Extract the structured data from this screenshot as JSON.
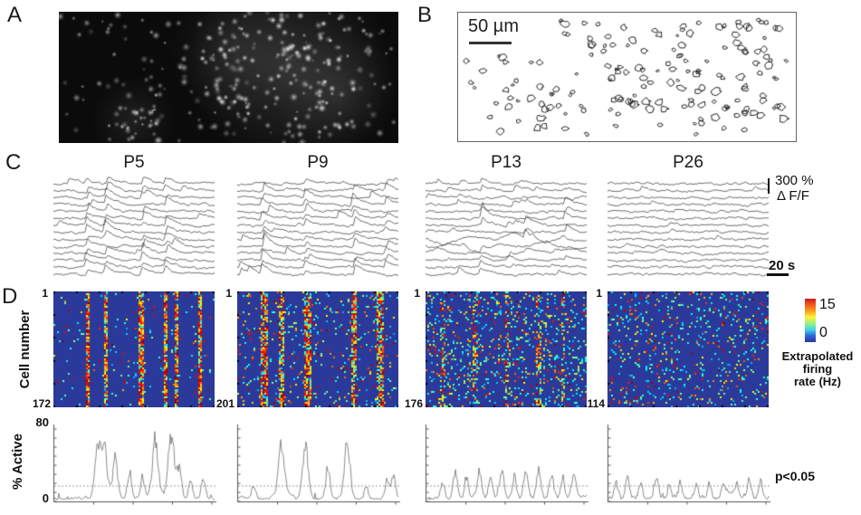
{
  "panels": {
    "A": {
      "label": "A"
    },
    "B": {
      "label": "B",
      "scale_bar_text": "50 µm"
    },
    "C": {
      "label": "C",
      "amp_scale": "300 %",
      "amp_unit": "Δ F/F",
      "time_scale": "20 s"
    },
    "D": {
      "label": "D",
      "y_label": "Cell number"
    }
  },
  "ages": [
    "P5",
    "P9",
    "P13",
    "P26"
  ],
  "traces": [
    {
      "age": "P5",
      "rows": 14,
      "sync": [
        0.21,
        0.33,
        0.56,
        0.7
      ],
      "sync_prob": 0.92,
      "extra": 0.6,
      "amp": 8,
      "wild_rows": []
    },
    {
      "age": "P9",
      "rows": 14,
      "sync": [
        0.16,
        0.43,
        0.73,
        0.93
      ],
      "sync_prob": 0.75,
      "extra": 1.2,
      "amp": 9,
      "wild_rows": []
    },
    {
      "age": "P13",
      "rows": 14,
      "sync": [
        0.35,
        0.62,
        0.87
      ],
      "sync_prob": 0.45,
      "extra": 3.0,
      "amp": 7,
      "wild_rows": [
        8,
        9,
        10
      ]
    },
    {
      "age": "P26",
      "rows": 14,
      "sync": [],
      "sync_prob": 0,
      "extra": 1.5,
      "amp": 4.5,
      "wild_rows": []
    }
  ],
  "heatmaps": [
    {
      "age": "P5",
      "first_cell": "1",
      "last_cell": "172",
      "stripes": [
        0.21,
        0.32,
        0.54,
        0.69,
        0.76,
        0.9
      ],
      "stripe_w": 0.012,
      "stripe_strength": 0.65,
      "scatter": 0.03
    },
    {
      "age": "P9",
      "first_cell": "1",
      "last_cell": "201",
      "stripes": [
        0.16,
        0.27,
        0.43,
        0.72,
        0.88
      ],
      "stripe_w": 0.02,
      "stripe_strength": 0.55,
      "scatter": 0.07
    },
    {
      "age": "P13",
      "first_cell": "1",
      "last_cell": "176",
      "stripes": [
        0.1,
        0.3,
        0.5,
        0.7,
        0.85
      ],
      "stripe_w": 0.015,
      "stripe_strength": 0.22,
      "scatter": 0.13
    },
    {
      "age": "P26",
      "first_cell": "1",
      "last_cell": "114",
      "stripes": [],
      "stripe_w": 0.012,
      "stripe_strength": 0,
      "scatter": 0.1
    }
  ],
  "heatmap_bg": "#2b3a9a",
  "colorbar": {
    "max": "15",
    "min": "0",
    "label_lines": [
      "Extrapolated",
      "firing",
      "rate (Hz)"
    ],
    "colors": [
      "#cc1b1b",
      "#f05a1e",
      "#f9a01c",
      "#fdf23a",
      "#9aee85",
      "#40d5e8",
      "#2e62d8",
      "#2b3a9a"
    ]
  },
  "activity": {
    "axis_label": "% Active",
    "y_max": "80",
    "y_min": "0",
    "sig_label": "p<0.05",
    "threshold": 17,
    "plots": [
      {
        "age": "P5",
        "noise": 3.5,
        "peaks": [
          [
            0.27,
            55
          ],
          [
            0.31,
            60
          ],
          [
            0.38,
            45
          ],
          [
            0.47,
            28
          ],
          [
            0.55,
            24
          ],
          [
            0.63,
            63
          ],
          [
            0.73,
            70
          ],
          [
            0.78,
            33
          ],
          [
            0.85,
            20
          ],
          [
            0.93,
            24
          ]
        ]
      },
      {
        "age": "P9",
        "noise": 3.5,
        "peaks": [
          [
            0.1,
            12
          ],
          [
            0.27,
            62
          ],
          [
            0.42,
            58
          ],
          [
            0.56,
            32
          ],
          [
            0.68,
            60
          ],
          [
            0.8,
            14
          ],
          [
            0.93,
            20
          ],
          [
            0.97,
            26
          ]
        ]
      },
      {
        "age": "P13",
        "noise": 5,
        "peaks": [
          [
            0.1,
            16
          ],
          [
            0.18,
            30
          ],
          [
            0.25,
            22
          ],
          [
            0.33,
            30
          ],
          [
            0.4,
            26
          ],
          [
            0.47,
            30
          ],
          [
            0.55,
            24
          ],
          [
            0.62,
            28
          ],
          [
            0.7,
            32
          ],
          [
            0.78,
            28
          ],
          [
            0.85,
            24
          ],
          [
            0.92,
            30
          ]
        ]
      },
      {
        "age": "P26",
        "noise": 7,
        "peaks": [
          [
            0.05,
            14
          ],
          [
            0.12,
            22
          ],
          [
            0.2,
            16
          ],
          [
            0.3,
            18
          ],
          [
            0.38,
            14
          ],
          [
            0.45,
            17
          ],
          [
            0.55,
            15
          ],
          [
            0.63,
            16
          ],
          [
            0.72,
            14
          ],
          [
            0.8,
            17
          ],
          [
            0.88,
            20
          ],
          [
            0.95,
            16
          ]
        ]
      }
    ]
  }
}
